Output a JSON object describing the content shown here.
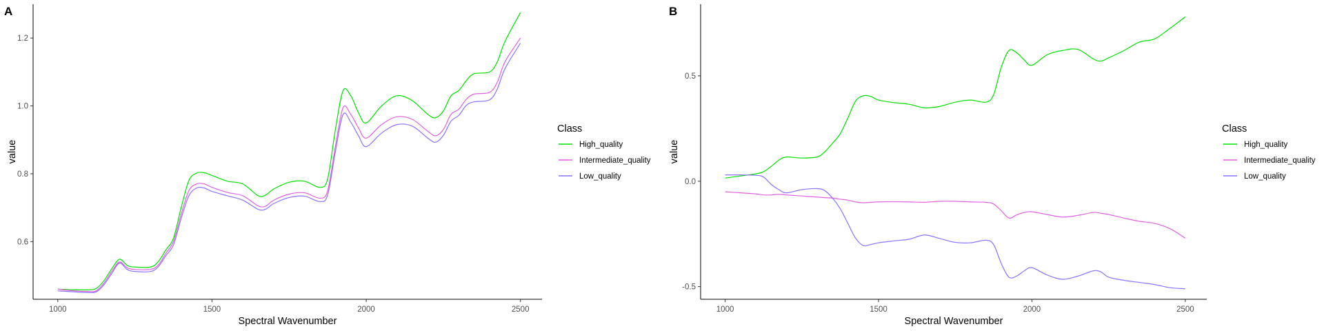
{
  "chart_data": [
    {
      "type": "line",
      "panel_label": "A",
      "xlabel": "Spectral Wavenumber",
      "ylabel": "value",
      "xlim": [
        920,
        2570
      ],
      "ylim": [
        0.43,
        1.3
      ],
      "xticks": [
        1000,
        1500,
        2000,
        2500
      ],
      "yticks": [
        0.6,
        0.8,
        1.0,
        1.2
      ],
      "ytick_labels": [
        "0.6",
        "0.8",
        "1.0",
        "1.2"
      ],
      "grid": false,
      "legend": {
        "title": "Class",
        "placement": "right"
      },
      "x": [
        1000,
        1050,
        1100,
        1125,
        1150,
        1175,
        1200,
        1225,
        1250,
        1300,
        1325,
        1350,
        1375,
        1400,
        1425,
        1450,
        1475,
        1500,
        1550,
        1600,
        1650,
        1675,
        1700,
        1750,
        1800,
        1850,
        1875,
        1900,
        1925,
        1950,
        1975,
        2000,
        2050,
        2100,
        2150,
        2200,
        2225,
        2250,
        2275,
        2300,
        2325,
        2350,
        2400,
        2425,
        2450,
        2500
      ],
      "series": [
        {
          "name": "High_quality",
          "color": "#00e000",
          "values": [
            0.46,
            0.458,
            0.458,
            0.462,
            0.485,
            0.52,
            0.548,
            0.53,
            0.525,
            0.525,
            0.54,
            0.575,
            0.61,
            0.7,
            0.78,
            0.802,
            0.803,
            0.795,
            0.778,
            0.77,
            0.735,
            0.738,
            0.755,
            0.775,
            0.778,
            0.76,
            0.785,
            0.93,
            1.045,
            1.03,
            0.98,
            0.95,
            1.0,
            1.03,
            1.015,
            0.975,
            0.965,
            0.985,
            1.03,
            1.045,
            1.075,
            1.095,
            1.1,
            1.13,
            1.19,
            1.275
          ]
        },
        {
          "name": "Intermediate_quality",
          "color": "#e060e0",
          "values": [
            0.46,
            0.455,
            0.453,
            0.455,
            0.478,
            0.512,
            0.54,
            0.523,
            0.518,
            0.518,
            0.53,
            0.565,
            0.6,
            0.68,
            0.75,
            0.77,
            0.77,
            0.76,
            0.745,
            0.735,
            0.705,
            0.705,
            0.722,
            0.74,
            0.744,
            0.728,
            0.75,
            0.88,
            0.995,
            0.975,
            0.935,
            0.905,
            0.945,
            0.968,
            0.96,
            0.925,
            0.912,
            0.93,
            0.975,
            0.99,
            1.02,
            1.035,
            1.04,
            1.07,
            1.13,
            1.2
          ]
        },
        {
          "name": "Low_quality",
          "color": "#8c70ff",
          "values": [
            0.455,
            0.452,
            0.45,
            0.452,
            0.473,
            0.506,
            0.537,
            0.518,
            0.512,
            0.512,
            0.525,
            0.558,
            0.59,
            0.668,
            0.735,
            0.758,
            0.758,
            0.748,
            0.735,
            0.722,
            0.695,
            0.696,
            0.712,
            0.73,
            0.734,
            0.718,
            0.738,
            0.865,
            0.975,
            0.952,
            0.912,
            0.88,
            0.92,
            0.945,
            0.94,
            0.905,
            0.893,
            0.913,
            0.955,
            0.972,
            1.002,
            1.012,
            1.018,
            1.05,
            1.11,
            1.185
          ]
        }
      ]
    },
    {
      "type": "line",
      "panel_label": "B",
      "xlabel": "Spectral Wavenumber",
      "ylabel": "value",
      "xlim": [
        920,
        2570
      ],
      "ylim": [
        -0.56,
        0.84
      ],
      "xticks": [
        1000,
        1500,
        2000,
        2500
      ],
      "yticks": [
        -0.5,
        0.0,
        0.5
      ],
      "ytick_labels": [
        "-0.5",
        "0.0",
        "0.5"
      ],
      "grid": false,
      "legend": {
        "title": "Class",
        "placement": "right"
      },
      "x": [
        1000,
        1050,
        1100,
        1125,
        1150,
        1175,
        1200,
        1250,
        1300,
        1325,
        1350,
        1375,
        1400,
        1425,
        1450,
        1475,
        1500,
        1550,
        1600,
        1650,
        1700,
        1750,
        1800,
        1850,
        1875,
        1900,
        1925,
        1950,
        1975,
        2000,
        2050,
        2100,
        2150,
        2200,
        2225,
        2250,
        2300,
        2350,
        2400,
        2450,
        2500
      ],
      "series": [
        {
          "name": "High_quality",
          "color": "#00e000",
          "values": [
            0.015,
            0.025,
            0.035,
            0.045,
            0.07,
            0.1,
            0.115,
            0.11,
            0.115,
            0.14,
            0.18,
            0.225,
            0.3,
            0.38,
            0.405,
            0.402,
            0.385,
            0.373,
            0.365,
            0.348,
            0.355,
            0.375,
            0.385,
            0.375,
            0.41,
            0.54,
            0.62,
            0.61,
            0.575,
            0.55,
            0.6,
            0.62,
            0.625,
            0.58,
            0.57,
            0.585,
            0.62,
            0.66,
            0.675,
            0.725,
            0.78
          ]
        },
        {
          "name": "Intermediate_quality",
          "color": "#e060e0",
          "values": [
            -0.05,
            -0.055,
            -0.06,
            -0.065,
            -0.065,
            -0.062,
            -0.065,
            -0.07,
            -0.075,
            -0.078,
            -0.08,
            -0.085,
            -0.09,
            -0.098,
            -0.102,
            -0.1,
            -0.098,
            -0.097,
            -0.098,
            -0.1,
            -0.095,
            -0.095,
            -0.098,
            -0.1,
            -0.108,
            -0.14,
            -0.175,
            -0.16,
            -0.148,
            -0.145,
            -0.158,
            -0.17,
            -0.162,
            -0.148,
            -0.152,
            -0.158,
            -0.175,
            -0.19,
            -0.2,
            -0.225,
            -0.27
          ]
        },
        {
          "name": "Low_quality",
          "color": "#8c70ff",
          "values": [
            0.03,
            0.03,
            0.028,
            0.02,
            -0.015,
            -0.04,
            -0.055,
            -0.04,
            -0.035,
            -0.045,
            -0.08,
            -0.13,
            -0.2,
            -0.27,
            -0.305,
            -0.3,
            -0.292,
            -0.283,
            -0.275,
            -0.255,
            -0.272,
            -0.29,
            -0.292,
            -0.28,
            -0.3,
            -0.39,
            -0.455,
            -0.45,
            -0.425,
            -0.41,
            -0.445,
            -0.465,
            -0.45,
            -0.425,
            -0.43,
            -0.455,
            -0.47,
            -0.48,
            -0.49,
            -0.505,
            -0.51
          ]
        }
      ]
    }
  ]
}
